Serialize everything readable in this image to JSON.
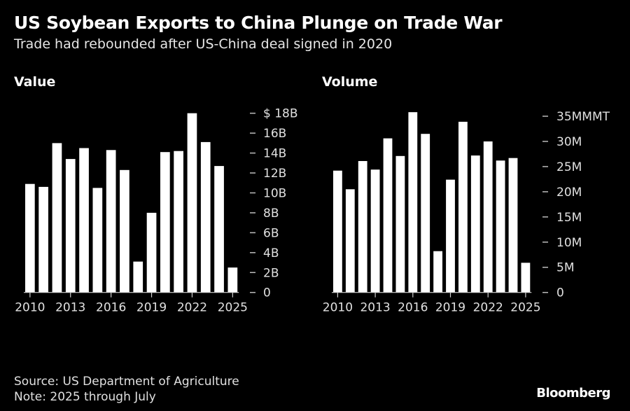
{
  "title": "US Soybean Exports to China Plunge on Trade War",
  "subtitle": "Trade had rebounded after US-China deal signed in 2020",
  "source": "Source: US Department of Agriculture",
  "note": "Note: 2025 through July",
  "brand": "Bloomberg",
  "colors": {
    "background": "#000000",
    "bar": "#ffffff",
    "text": "#e0e0e0"
  },
  "chart_data": [
    {
      "type": "bar",
      "title": "Value",
      "xlabel": "",
      "ylabel": "",
      "categories": [
        "2010",
        "2011",
        "2012",
        "2013",
        "2014",
        "2015",
        "2016",
        "2017",
        "2018",
        "2019",
        "2020",
        "2021",
        "2022",
        "2023",
        "2024",
        "2025"
      ],
      "values": [
        10.9,
        10.6,
        15.0,
        13.4,
        14.5,
        10.5,
        14.3,
        12.3,
        3.1,
        8.0,
        14.1,
        14.2,
        18.0,
        15.1,
        12.7,
        2.5
      ],
      "unit": "billion USD",
      "ylim": [
        0,
        18
      ],
      "yticks": [
        0,
        2,
        4,
        6,
        8,
        10,
        12,
        14,
        16,
        18
      ],
      "ytick_labels": [
        "0",
        "2B",
        "4B",
        "6B",
        "8B",
        "10B",
        "12B",
        "14B",
        "16B",
        "$ 18B"
      ],
      "xtick_labels": [
        "2010",
        "2013",
        "2016",
        "2019",
        "2022",
        "2025"
      ],
      "y_axis_side": "right",
      "grid": false,
      "legend": "none"
    },
    {
      "type": "bar",
      "title": "Volume",
      "xlabel": "",
      "ylabel": "",
      "categories": [
        "2010",
        "2011",
        "2012",
        "2013",
        "2014",
        "2015",
        "2016",
        "2017",
        "2018",
        "2019",
        "2020",
        "2021",
        "2022",
        "2023",
        "2024",
        "2025"
      ],
      "values": [
        24.2,
        20.5,
        26.1,
        24.4,
        30.6,
        27.1,
        35.8,
        31.5,
        8.2,
        22.4,
        33.9,
        27.2,
        30.0,
        26.2,
        26.7,
        5.9
      ],
      "unit": "million metric tons",
      "ylim": [
        0,
        35
      ],
      "yticks": [
        0,
        5,
        10,
        15,
        20,
        25,
        30,
        35
      ],
      "ytick_labels": [
        "0",
        "5M",
        "10M",
        "15M",
        "20M",
        "25M",
        "30M",
        "35MMMT"
      ],
      "xtick_labels": [
        "2010",
        "2013",
        "2016",
        "2019",
        "2022",
        "2025"
      ],
      "y_axis_side": "right",
      "grid": false,
      "legend": "none"
    }
  ]
}
